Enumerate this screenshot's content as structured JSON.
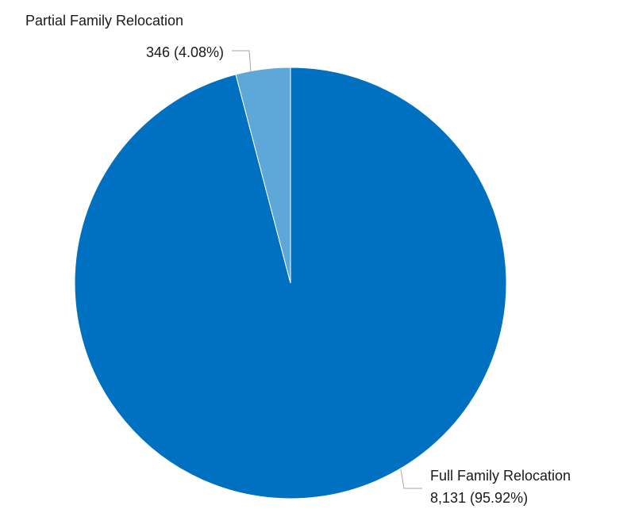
{
  "chart_data": {
    "type": "pie",
    "title": "",
    "slices": [
      {
        "name": "Full Family Relocation",
        "value": 8131,
        "value_label": "8,131 (95.92%)",
        "percent": 95.92,
        "color": "#0070c0"
      },
      {
        "name": "Partial Family Relocation",
        "value": 346,
        "value_label": "346 (4.08%)",
        "percent": 4.08,
        "color": "#5ea7d9"
      }
    ],
    "start_angle_deg": 0,
    "direction": "clockwise",
    "legend": "none",
    "data_labels": "outside-with-leader-lines"
  }
}
